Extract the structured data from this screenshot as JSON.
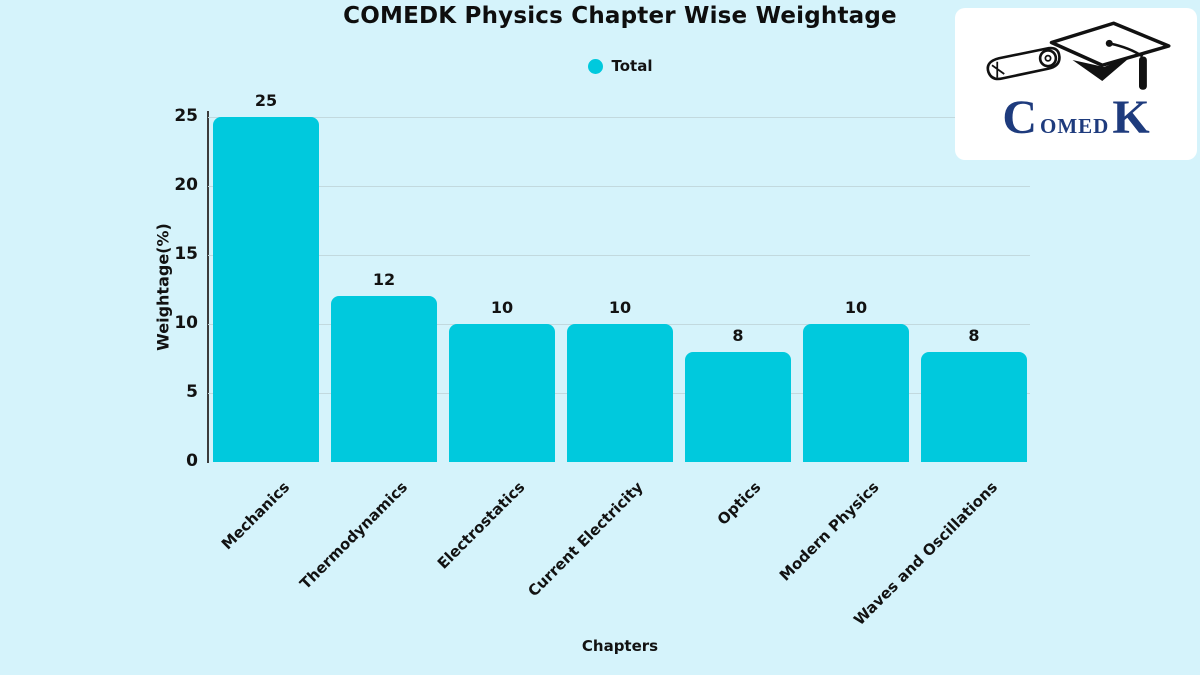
{
  "title": "COMEDK Physics Chapter Wise Weightage",
  "legend": {
    "label": "Total"
  },
  "logo": {
    "letter_c": "C",
    "mid": "OMED",
    "letter_k": "K"
  },
  "colors": {
    "background": "#d5f3fb",
    "bar": "#00c9dd",
    "gridline": "#c2d9de",
    "axis": "#3c3c3c",
    "text": "#121212",
    "logo_navy": "#1e3b7d"
  },
  "chart_data": {
    "type": "bar",
    "title": "COMEDK Physics Chapter Wise Weightage",
    "categories": [
      "Mechanics",
      "Thermodynamics",
      "Electrostatics",
      "Current Electricity",
      "Optics",
      "Modern Physics",
      "Waves and Oscillations"
    ],
    "series": [
      {
        "name": "Total",
        "values": [
          25,
          12,
          10,
          10,
          8,
          10,
          8
        ]
      }
    ],
    "value_labels": [
      "25",
      "12",
      "10",
      "10",
      "8",
      "10",
      "8"
    ],
    "xlabel": "Chapters",
    "ylabel": "Weightage(%)",
    "ylim": [
      0,
      25
    ],
    "yticks": [
      0,
      5,
      10,
      15,
      20,
      25
    ],
    "grid": true,
    "legend_position": "top-center",
    "bar_color": "#00c9dd"
  }
}
